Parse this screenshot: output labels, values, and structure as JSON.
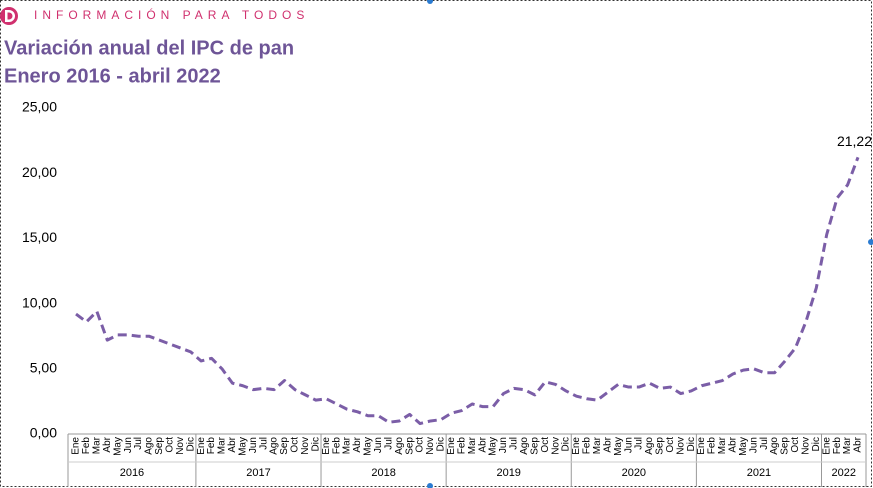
{
  "header": {
    "tagline": "INFORMACIÓN PARA TODOS"
  },
  "chart_data": {
    "type": "line",
    "title": "Variación anual del IPC de pan",
    "subtitle": "Enero 2016 - abril 2022",
    "categories": [
      "Ene",
      "Feb",
      "Mar",
      "Abr",
      "May",
      "Jun",
      "Jul",
      "Ago",
      "Sep",
      "Oct",
      "Nov",
      "Dic",
      "Ene",
      "Feb",
      "Mar",
      "Abr",
      "May",
      "Jun",
      "Jul",
      "Ago",
      "Sep",
      "Oct",
      "Nov",
      "Dic",
      "Ene",
      "Feb",
      "Mar",
      "Abr",
      "May",
      "Jun",
      "Jul",
      "Ago",
      "Sep",
      "Oct",
      "Nov",
      "Dic",
      "Ene",
      "Feb",
      "Mar",
      "Abr",
      "May",
      "Jun",
      "Jul",
      "Ago",
      "Sep",
      "Oct",
      "Nov",
      "Dic",
      "Ene",
      "Feb",
      "Mar",
      "Abr",
      "May",
      "Jun",
      "Jul",
      "Ago",
      "Sep",
      "Oct",
      "Nov",
      "Dic",
      "Ene",
      "Feb",
      "Mar",
      "Abr",
      "May",
      "Jun",
      "Jul",
      "Ago",
      "Sep",
      "Oct",
      "Nov",
      "Dic",
      "Ene",
      "Feb",
      "Mar",
      "Abr"
    ],
    "year_groups": [
      "2016",
      "2017",
      "2018",
      "2019",
      "2020",
      "2021",
      "2022"
    ],
    "color": "#7b5ea7",
    "values": [
      9.2,
      8.6,
      9.4,
      7.2,
      7.6,
      7.6,
      7.5,
      7.5,
      7.2,
      6.9,
      6.6,
      6.3,
      5.6,
      5.8,
      5.0,
      3.9,
      3.7,
      3.4,
      3.5,
      3.4,
      4.1,
      3.4,
      3.0,
      2.6,
      2.7,
      2.3,
      1.9,
      1.7,
      1.4,
      1.4,
      0.9,
      1.0,
      1.5,
      0.8,
      1.0,
      1.1,
      1.6,
      1.8,
      2.3,
      2.1,
      2.1,
      3.1,
      3.5,
      3.4,
      3.0,
      4.0,
      3.8,
      3.3,
      2.9,
      2.7,
      2.6,
      3.2,
      3.8,
      3.6,
      3.6,
      3.9,
      3.5,
      3.6,
      3.1,
      3.3,
      3.7,
      3.9,
      4.1,
      4.6,
      4.9,
      5.0,
      4.7,
      4.7,
      5.6,
      6.6,
      8.6,
      11.2,
      15.3,
      18.1,
      19.1,
      21.22
    ],
    "data_labels": [
      {
        "index": 75,
        "value": 21.22,
        "label": "21,22"
      }
    ],
    "ylim": [
      0,
      25
    ],
    "yticks": [
      {
        "value": 0,
        "label": "0,00"
      },
      {
        "value": 5,
        "label": "5,00"
      },
      {
        "value": 10,
        "label": "10,00"
      },
      {
        "value": 15,
        "label": "15,00"
      },
      {
        "value": 20,
        "label": "20,00"
      },
      {
        "value": 25,
        "label": "25,00"
      }
    ]
  }
}
